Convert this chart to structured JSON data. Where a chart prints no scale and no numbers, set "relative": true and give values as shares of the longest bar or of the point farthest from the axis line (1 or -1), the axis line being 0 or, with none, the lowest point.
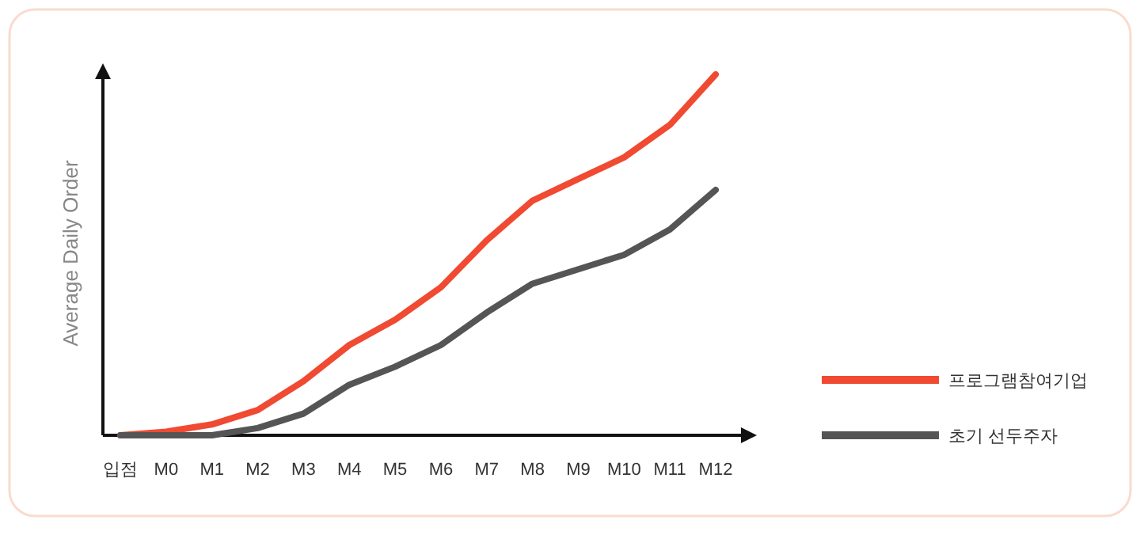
{
  "chart_data": {
    "type": "line",
    "relative": true,
    "ylabel": "Average Daily Order",
    "legend": "right",
    "categories": [
      "입점",
      "M0",
      "M1",
      "M2",
      "M3",
      "M4",
      "M5",
      "M6",
      "M7",
      "M8",
      "M9",
      "M10",
      "M11",
      "M12"
    ],
    "series": [
      {
        "name": "프로그램참여기업",
        "color": "#f04a32",
        "values": [
          0,
          0.01,
          0.03,
          0.07,
          0.15,
          0.25,
          0.32,
          0.41,
          0.54,
          0.65,
          0.71,
          0.77,
          0.86,
          1
        ]
      },
      {
        "name": "초기 선두주자",
        "color": "#555555",
        "values": [
          0,
          0,
          0,
          0.02,
          0.06,
          0.14,
          0.19,
          0.25,
          0.34,
          0.42,
          0.46,
          0.5,
          0.57,
          0.68
        ]
      }
    ]
  }
}
